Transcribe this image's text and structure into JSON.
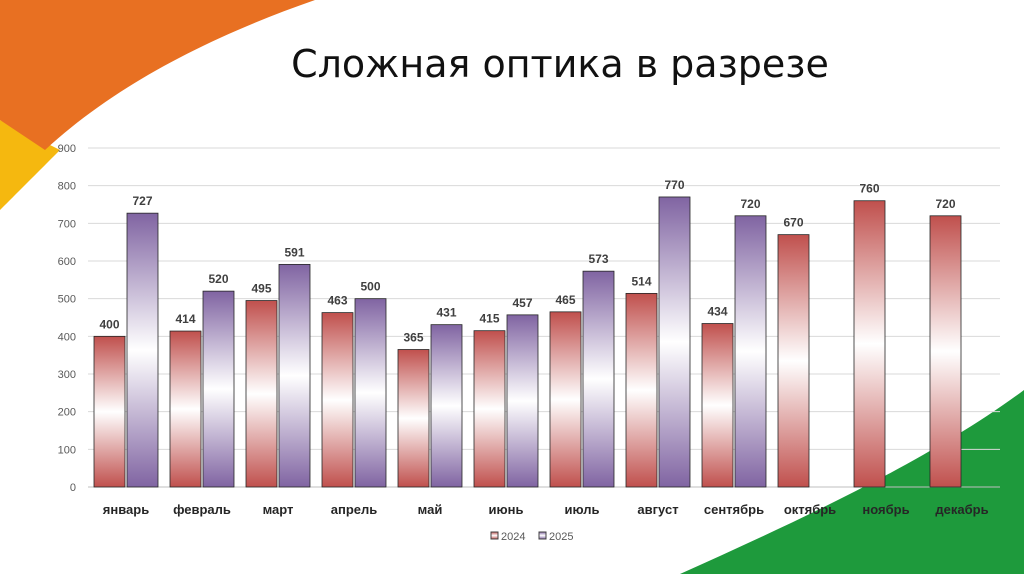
{
  "title": "Сложная оптика в разрезе",
  "colors": {
    "series_2024": "#c0504d",
    "series_2025": "#8064a2",
    "deco_orange": "#e87022",
    "deco_yellow": "#f5b80f",
    "deco_green": "#1e9a3c"
  },
  "chart_data": {
    "type": "bar",
    "title": "Сложная оптика в разрезе",
    "categories": [
      "январь",
      "февраль",
      "март",
      "апрель",
      "май",
      "июнь",
      "июль",
      "август",
      "сентябрь",
      "октябрь",
      "ноябрь",
      "декабрь"
    ],
    "series": [
      {
        "name": "2024",
        "values": [
          400,
          414,
          495,
          463,
          365,
          415,
          465,
          514,
          434,
          670,
          760,
          720
        ]
      },
      {
        "name": "2025",
        "values": [
          727,
          520,
          591,
          500,
          431,
          457,
          573,
          770,
          720,
          null,
          null,
          null
        ]
      }
    ],
    "ylim": [
      0,
      900
    ],
    "yticks": [
      "0",
      "100",
      "200",
      "300",
      "400",
      "500",
      "600",
      "700",
      "800",
      "900"
    ],
    "grid": true,
    "legend": "bottom",
    "data_labels": true
  }
}
